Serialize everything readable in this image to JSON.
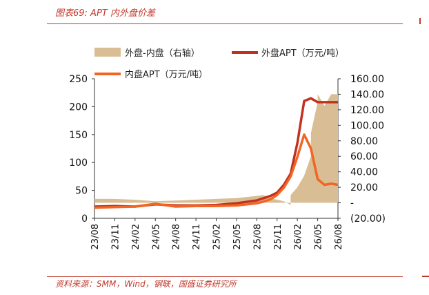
{
  "figure": {
    "title": "图表69: APT 内外盘价差",
    "source": "资料来源：SMM，Wind，钢联，国盛证券研究所"
  },
  "colors": {
    "accent": "#c0392b",
    "spread_fill": "#d9bd94",
    "external": "#c0321f",
    "internal": "#f26522"
  },
  "chart_data": {
    "type": "line",
    "x_type": "date",
    "x_ticks": [
      "23/08",
      "23/11",
      "24/02",
      "24/05",
      "24/08",
      "24/11",
      "25/02",
      "25/05",
      "25/08",
      "25/11",
      "26/02",
      "26/05",
      "26/08"
    ],
    "y_left": {
      "ticks": [
        "250",
        "200",
        "150",
        "100",
        "50",
        "0"
      ],
      "range": [
        0,
        250
      ]
    },
    "y_right": {
      "ticks": [
        "160.00",
        "140.00",
        "120.00",
        "100.00",
        "80.00",
        "60.00",
        "40.00",
        "20.00",
        "-",
        "(20.00)"
      ],
      "range": [
        -20,
        160
      ]
    },
    "legend": {
      "placement": "top",
      "items": [
        "外盘-内盘（右轴）",
        "外盘APT（万元/吨）",
        "内盘APT（万元/吨）"
      ]
    },
    "series": [
      {
        "name": "外盘-内盘（右轴）",
        "type": "area",
        "axis": "right",
        "points": [
          [
            "23/08",
            5
          ],
          [
            "23/11",
            5
          ],
          [
            "24/02",
            4
          ],
          [
            "24/05",
            2
          ],
          [
            "24/08",
            3
          ],
          [
            "24/11",
            4
          ],
          [
            "25/02",
            5
          ],
          [
            "25/05",
            6
          ],
          [
            "25/07",
            8
          ],
          [
            "25/08",
            9
          ],
          [
            "25/09",
            10
          ],
          [
            "25/10",
            6
          ],
          [
            "25/11",
            4
          ],
          [
            "25/12",
            2
          ],
          [
            "26/01",
            -3
          ],
          [
            "26/01",
            10
          ],
          [
            "26/02",
            20
          ],
          [
            "26/03",
            35
          ],
          [
            "26/04",
            60
          ],
          [
            "26/04",
            90
          ],
          [
            "26/05",
            130
          ],
          [
            "26/05",
            140
          ],
          [
            "26/06",
            125
          ],
          [
            "26/07",
            140
          ],
          [
            "26/08",
            140
          ]
        ]
      },
      {
        "name": "外盘APT（万元/吨）",
        "type": "line",
        "axis": "left",
        "points": [
          [
            "23/08",
            21
          ],
          [
            "23/11",
            22
          ],
          [
            "24/02",
            21
          ],
          [
            "24/05",
            25
          ],
          [
            "24/08",
            23
          ],
          [
            "24/11",
            23
          ],
          [
            "25/02",
            24
          ],
          [
            "25/05",
            27
          ],
          [
            "25/08",
            32
          ],
          [
            "25/09",
            36
          ],
          [
            "25/10",
            40
          ],
          [
            "25/11",
            46
          ],
          [
            "25/12",
            60
          ],
          [
            "26/01",
            80
          ],
          [
            "26/02",
            135
          ],
          [
            "26/03",
            210
          ],
          [
            "26/04",
            215
          ],
          [
            "26/05",
            208
          ],
          [
            "26/06",
            208
          ],
          [
            "26/07",
            208
          ],
          [
            "26/08",
            208
          ]
        ]
      },
      {
        "name": "内盘APT（万元/吨）",
        "type": "line",
        "axis": "left",
        "points": [
          [
            "23/08",
            19
          ],
          [
            "23/11",
            20
          ],
          [
            "24/02",
            21
          ],
          [
            "24/05",
            26
          ],
          [
            "24/08",
            21
          ],
          [
            "24/11",
            22
          ],
          [
            "25/02",
            22
          ],
          [
            "25/05",
            23
          ],
          [
            "25/08",
            27
          ],
          [
            "25/09",
            30
          ],
          [
            "25/10",
            34
          ],
          [
            "25/11",
            42
          ],
          [
            "25/12",
            55
          ],
          [
            "26/01",
            75
          ],
          [
            "26/02",
            110
          ],
          [
            "26/03",
            150
          ],
          [
            "26/04",
            125
          ],
          [
            "26/05",
            70
          ],
          [
            "26/06",
            60
          ],
          [
            "26/07",
            62
          ],
          [
            "26/08",
            60
          ]
        ]
      }
    ]
  }
}
